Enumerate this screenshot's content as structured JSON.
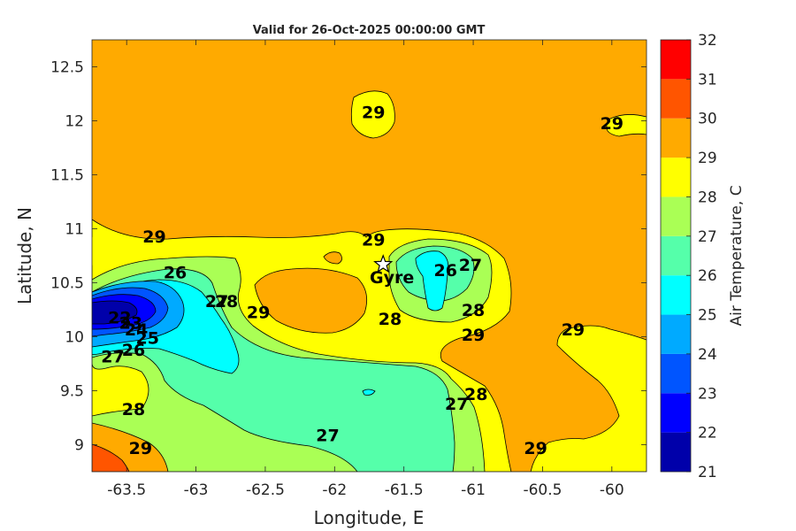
{
  "chart_data": {
    "type": "heatmap",
    "subtype": "filled-contour map",
    "title": "Valid for 26-Oct-2025 00:00:00 GMT",
    "xlabel": "Longitude, E",
    "ylabel": "Latitude, N",
    "xlim": [
      -63.75,
      -59.75
    ],
    "ylim": [
      8.75,
      12.75
    ],
    "xticks": [
      -63.5,
      -63,
      -62.5,
      -62,
      -61.5,
      -61,
      -60.5,
      -60
    ],
    "xtick_labels": [
      "-63.5",
      "-63",
      "-62.5",
      "-62",
      "-61.5",
      "-61",
      "-60.5",
      "-60"
    ],
    "yticks": [
      9,
      9.5,
      10,
      10.5,
      11,
      11.5,
      12,
      12.5
    ],
    "ytick_labels": [
      "9",
      "9.5",
      "10",
      "10.5",
      "11",
      "11.5",
      "12",
      "12.5"
    ],
    "colorbar": {
      "label": "Air Temperature, C",
      "levels": [
        21,
        22,
        23,
        24,
        25,
        26,
        27,
        28,
        29,
        30,
        31,
        32
      ],
      "level_labels": [
        "21",
        "22",
        "23",
        "24",
        "25",
        "26",
        "27",
        "28",
        "29",
        "30",
        "31",
        "32"
      ],
      "colors": [
        "#0000aa",
        "#0000ff",
        "#0055ff",
        "#00aaff",
        "#00ffff",
        "#55ffaa",
        "#aaff55",
        "#ffff00",
        "#ffaa00",
        "#ff5500",
        "#ff0000",
        "#aa0000"
      ]
    },
    "marker": {
      "name": "Gyre",
      "lon": -61.65,
      "lat": 10.67,
      "symbol": "star"
    },
    "contour_labels": [
      {
        "text": "29",
        "lon": -61.72,
        "lat": 12.08
      },
      {
        "text": "29",
        "lon": -60.0,
        "lat": 11.98
      },
      {
        "text": "29",
        "lon": -63.3,
        "lat": 10.93
      },
      {
        "text": "29",
        "lon": -61.72,
        "lat": 10.9
      },
      {
        "text": "26",
        "lon": -63.15,
        "lat": 10.6
      },
      {
        "text": "26",
        "lon": -61.2,
        "lat": 10.62
      },
      {
        "text": "27",
        "lon": -61.02,
        "lat": 10.67
      },
      {
        "text": "28",
        "lon": -62.78,
        "lat": 10.33
      },
      {
        "text": "27",
        "lon": -62.85,
        "lat": 10.33
      },
      {
        "text": "29",
        "lon": -62.55,
        "lat": 10.23
      },
      {
        "text": "28",
        "lon": -61.6,
        "lat": 10.17
      },
      {
        "text": "28",
        "lon": -61.0,
        "lat": 10.25
      },
      {
        "text": "29",
        "lon": -61.0,
        "lat": 10.02
      },
      {
        "text": "29",
        "lon": -60.28,
        "lat": 10.07
      },
      {
        "text": "22",
        "lon": -63.55,
        "lat": 10.18
      },
      {
        "text": "23",
        "lon": -63.47,
        "lat": 10.13
      },
      {
        "text": "24",
        "lon": -63.43,
        "lat": 10.07
      },
      {
        "text": "25",
        "lon": -63.35,
        "lat": 9.99
      },
      {
        "text": "26",
        "lon": -63.45,
        "lat": 9.88
      },
      {
        "text": "27",
        "lon": -63.6,
        "lat": 9.82
      },
      {
        "text": "28",
        "lon": -63.45,
        "lat": 9.33
      },
      {
        "text": "29",
        "lon": -63.4,
        "lat": 8.97
      },
      {
        "text": "27",
        "lon": -62.05,
        "lat": 9.09
      },
      {
        "text": "27",
        "lon": -61.12,
        "lat": 9.38
      },
      {
        "text": "28",
        "lon": -60.98,
        "lat": 9.47
      },
      {
        "text": "29",
        "lon": -60.55,
        "lat": 8.97
      }
    ]
  }
}
